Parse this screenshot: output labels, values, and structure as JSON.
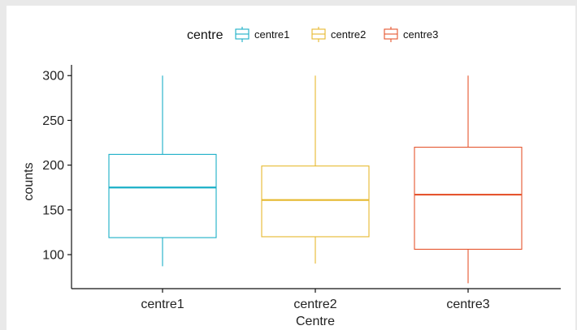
{
  "chart_data": {
    "type": "boxplot",
    "xlabel": "Centre",
    "ylabel": "counts",
    "ylim": [
      62,
      312
    ],
    "yticks": [
      100,
      150,
      200,
      250,
      300
    ],
    "categories": [
      "centre1",
      "centre2",
      "centre3"
    ],
    "legend": {
      "title": "centre",
      "position": "top",
      "entries": [
        "centre1",
        "centre2",
        "centre3"
      ]
    },
    "colors": {
      "centre1": "#1aafc7",
      "centre2": "#e6b92e",
      "centre3": "#e5552f"
    },
    "boxes": [
      {
        "name": "centre1",
        "min": 87,
        "q1": 119,
        "median": 175,
        "q3": 212,
        "max": 300
      },
      {
        "name": "centre2",
        "min": 90,
        "q1": 120,
        "median": 161,
        "q3": 199,
        "max": 300
      },
      {
        "name": "centre3",
        "min": 68,
        "q1": 106,
        "median": 167,
        "q3": 220,
        "max": 300
      }
    ]
  }
}
